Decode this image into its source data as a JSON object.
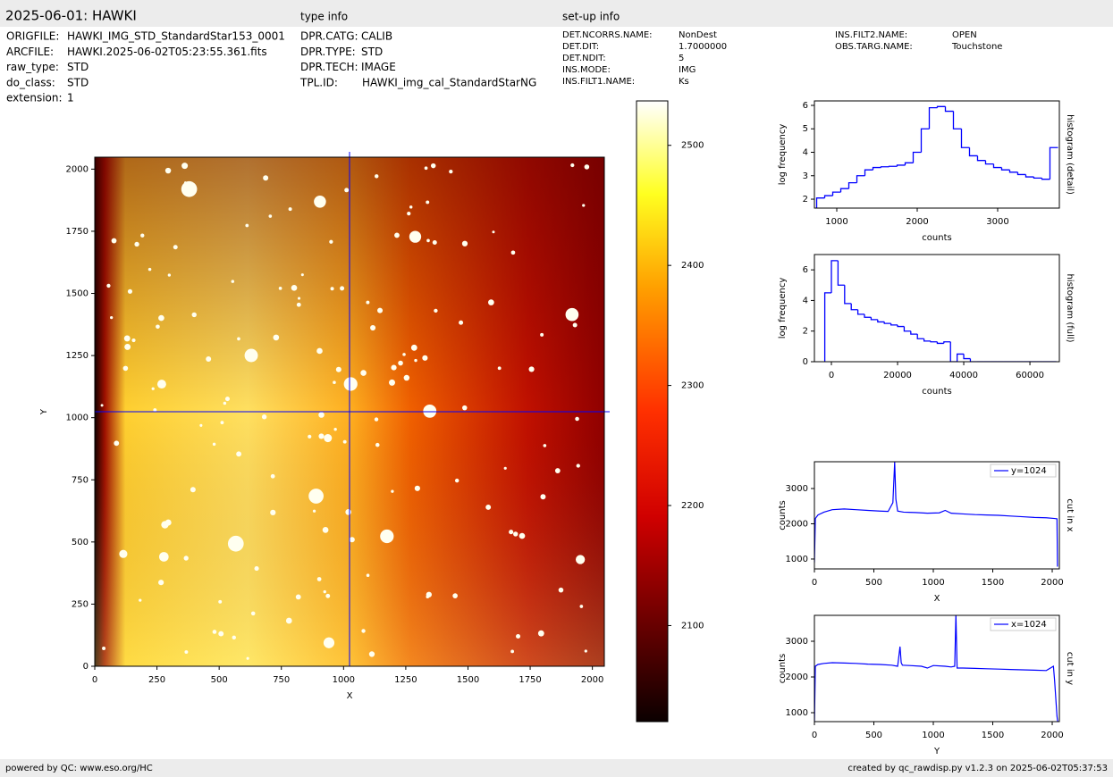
{
  "header": {
    "title": "2025-06-01: HAWKI",
    "type_heading": "type info",
    "setup_heading": "set-up info"
  },
  "file_info": [
    [
      "ORIGFILE:",
      "HAWKI_IMG_STD_StandardStar153_0001"
    ],
    [
      "ARCFILE:",
      "HAWKI.2025-06-02T05:23:55.361.fits"
    ],
    [
      "raw_type:",
      "STD"
    ],
    [
      "do_class:",
      "STD"
    ],
    [
      "extension:",
      "1"
    ]
  ],
  "type_info": [
    [
      "DPR.CATG:",
      "CALIB"
    ],
    [
      "DPR.TYPE:",
      "STD"
    ],
    [
      "DPR.TECH:",
      "IMAGE"
    ],
    [
      "TPL.ID:",
      "HAWKI_img_cal_StandardStarNG"
    ]
  ],
  "setup_info": [
    [
      [
        "DET.NCORRS.NAME:",
        "NonDest"
      ],
      [
        "DET.DIT:",
        "1.7000000"
      ],
      [
        "DET.NDIT:",
        "5"
      ],
      [
        "INS.MODE:",
        "IMG"
      ],
      [
        "INS.FILT1.NAME:",
        "Ks"
      ]
    ],
    [
      [
        "INS.FILT2.NAME:",
        "OPEN"
      ],
      [
        "OBS.TARG.NAME:",
        "Touchstone"
      ]
    ]
  ],
  "footer": {
    "left": "powered by QC: www.eso.org/HC",
    "right": "created by qc_rawdisp.py v1.2.3 on 2025-06-02T05:37:53"
  },
  "chart_data": [
    {
      "type": "image",
      "xlabel": "X",
      "ylabel": "Y",
      "xlim": [
        0,
        2048
      ],
      "ylim": [
        0,
        2048
      ],
      "xticks": [
        0,
        250,
        500,
        750,
        1000,
        1250,
        1500,
        1750,
        2000
      ],
      "yticks": [
        0,
        250,
        500,
        750,
        1000,
        1250,
        1500,
        1750,
        2000
      ],
      "crosshair": {
        "x": 1024,
        "y": 1024
      },
      "crosshair_color": "#0000ff"
    },
    {
      "type": "colorbar",
      "ylim": [
        2020,
        2537
      ],
      "yticks": [
        2100,
        2200,
        2300,
        2400,
        2500
      ]
    },
    {
      "type": "histogram",
      "xlabel": "counts",
      "ylabel": "log frequency",
      "side_label": "histogram (detail)",
      "color": "#0000ff",
      "xlim": [
        722,
        3767
      ],
      "ylim": [
        1.62,
        6.19
      ],
      "xticks": [
        1000,
        2000,
        3000
      ],
      "yticks": [
        2,
        3,
        4,
        5,
        6
      ],
      "bins": [
        750,
        850,
        950,
        1050,
        1150,
        1250,
        1350,
        1450,
        1550,
        1650,
        1750,
        1850,
        1950,
        2050,
        2150,
        2250,
        2350,
        2450,
        2550,
        2650,
        2750,
        2850,
        2950,
        3050,
        3150,
        3250,
        3350,
        3450,
        3550,
        3650,
        3750
      ],
      "counts": [
        2.05,
        2.15,
        2.3,
        2.45,
        2.7,
        3.0,
        3.25,
        3.35,
        3.38,
        3.4,
        3.45,
        3.55,
        4.0,
        5.0,
        5.9,
        5.95,
        5.75,
        5.0,
        4.2,
        3.85,
        3.65,
        3.5,
        3.35,
        3.25,
        3.15,
        3.05,
        2.95,
        2.9,
        2.85,
        4.2
      ]
    },
    {
      "type": "histogram",
      "xlabel": "counts",
      "ylabel": "log frequency",
      "side_label": "histogram (full)",
      "color": "#0000ff",
      "xlim": [
        -5135,
        68900
      ],
      "ylim": [
        0,
        7
      ],
      "xticks": [
        0,
        20000,
        40000,
        60000
      ],
      "yticks": [
        0,
        2,
        4,
        6
      ],
      "bins": [
        -2000,
        0,
        2000,
        4000,
        6000,
        8000,
        10000,
        12000,
        14000,
        16000,
        18000,
        20000,
        22000,
        24000,
        26000,
        28000,
        30000,
        32000,
        34000,
        36000,
        38000,
        40000,
        42000,
        44000,
        46000,
        48000,
        50000,
        52000,
        54000,
        56000,
        58000,
        60000,
        62000,
        64000,
        66000,
        68000
      ],
      "counts": [
        4.5,
        6.6,
        5.0,
        3.8,
        3.4,
        3.1,
        2.9,
        2.75,
        2.6,
        2.5,
        2.4,
        2.3,
        2.0,
        1.8,
        1.5,
        1.35,
        1.3,
        1.2,
        1.3,
        0,
        0.5,
        0.2,
        0,
        0,
        0,
        0,
        0,
        0,
        0,
        0,
        0,
        0,
        0,
        0,
        0
      ]
    },
    {
      "type": "line",
      "xlabel": "X",
      "ylabel": "counts",
      "side_label": "cut in x",
      "xlim": [
        0,
        2060
      ],
      "ylim": [
        720,
        3760
      ],
      "xticks": [
        0,
        500,
        1000,
        1500,
        2000
      ],
      "yticks": [
        1000,
        2000,
        3000
      ],
      "x": [
        0,
        8,
        30,
        80,
        150,
        250,
        350,
        450,
        550,
        620,
        660,
        675,
        685,
        700,
        750,
        850,
        950,
        1050,
        1100,
        1150,
        1250,
        1350,
        1450,
        1550,
        1650,
        1750,
        1850,
        1950,
        2020,
        2040,
        2044,
        2048
      ],
      "series": [
        {
          "name": "y=1024",
          "color": "#0000ff",
          "values": [
            900,
            2150,
            2250,
            2330,
            2400,
            2420,
            2400,
            2380,
            2360,
            2350,
            2600,
            3750,
            2700,
            2360,
            2330,
            2320,
            2300,
            2310,
            2380,
            2300,
            2280,
            2260,
            2250,
            2240,
            2220,
            2200,
            2180,
            2170,
            2150,
            2140,
            800,
            800
          ]
        }
      ]
    },
    {
      "type": "line",
      "xlabel": "Y",
      "ylabel": "counts",
      "side_label": "cut in y",
      "xlim": [
        0,
        2060
      ],
      "ylim": [
        750,
        3725
      ],
      "xticks": [
        0,
        500,
        1000,
        1500,
        2000
      ],
      "yticks": [
        1000,
        2000,
        3000
      ],
      "x": [
        0,
        8,
        30,
        80,
        150,
        250,
        350,
        450,
        550,
        650,
        700,
        720,
        730,
        740,
        800,
        900,
        950,
        1000,
        1100,
        1150,
        1180,
        1190,
        1200,
        1250,
        1350,
        1450,
        1550,
        1650,
        1750,
        1850,
        1950,
        2010,
        2020,
        2040,
        2048
      ],
      "series": [
        {
          "name": "x=1024",
          "color": "#0000ff",
          "values": [
            700,
            2300,
            2350,
            2380,
            2400,
            2390,
            2380,
            2360,
            2350,
            2330,
            2300,
            2850,
            2400,
            2330,
            2320,
            2300,
            2250,
            2320,
            2300,
            2280,
            2300,
            3760,
            2250,
            2250,
            2240,
            2230,
            2220,
            2210,
            2200,
            2190,
            2180,
            2300,
            1900,
            900,
            700
          ]
        }
      ]
    }
  ]
}
